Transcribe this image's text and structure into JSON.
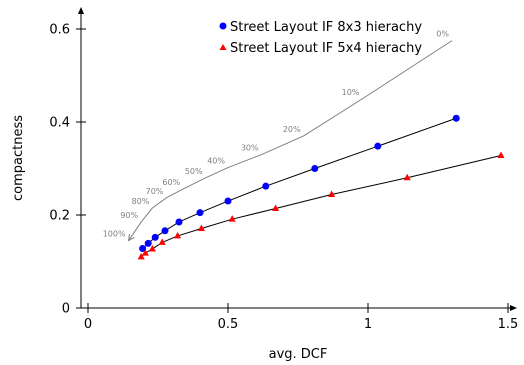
{
  "chart_data": {
    "type": "line",
    "title": "",
    "xlabel": "avg. DCF",
    "ylabel": "compactness",
    "xlim": [
      -0.03,
      1.5
    ],
    "ylim": [
      0,
      0.65
    ],
    "xticks": [
      0,
      0.5,
      1,
      1.5
    ],
    "xtick_labels": [
      "0",
      "0.5",
      "1",
      "1.5"
    ],
    "yticks": [
      0,
      0.2,
      0.4,
      0.6
    ],
    "ytick_labels": [
      "0",
      "0.2",
      "0.4",
      "0.6"
    ],
    "grid": false,
    "legend_position": "top-right",
    "series": [
      {
        "name": "Street Layout IF 8x3 hierachy",
        "color": "#0000ff",
        "marker": "circle",
        "x": [
          0.195,
          0.215,
          0.24,
          0.275,
          0.325,
          0.4,
          0.5,
          0.635,
          0.81,
          1.035,
          1.315
        ],
        "y": [
          0.128,
          0.139,
          0.152,
          0.166,
          0.185,
          0.205,
          0.23,
          0.262,
          0.3,
          0.348,
          0.408
        ]
      },
      {
        "name": "Street Layout IF 5x4 hierachy",
        "color": "#ff0000",
        "marker": "triangle",
        "x": [
          0.19,
          0.205,
          0.23,
          0.265,
          0.32,
          0.405,
          0.515,
          0.67,
          0.87,
          1.14,
          1.475
        ],
        "y": [
          0.11,
          0.118,
          0.127,
          0.141,
          0.155,
          0.171,
          0.191,
          0.214,
          0.244,
          0.28,
          0.328
        ]
      },
      {
        "name": "",
        "color": "#808080",
        "marker": "none",
        "x": [
          0.145,
          0.19,
          0.23,
          0.28,
          0.34,
          0.42,
          0.5,
          0.62,
          0.77,
          0.98,
          1.3
        ],
        "y": [
          0.145,
          0.185,
          0.215,
          0.237,
          0.256,
          0.28,
          0.302,
          0.33,
          0.37,
          0.45,
          0.575
        ],
        "annotations": [
          "100%",
          "90%",
          "80%",
          "70%",
          "60%",
          "50%",
          "40%",
          "30%",
          "20%",
          "10%",
          "0%"
        ]
      }
    ]
  }
}
